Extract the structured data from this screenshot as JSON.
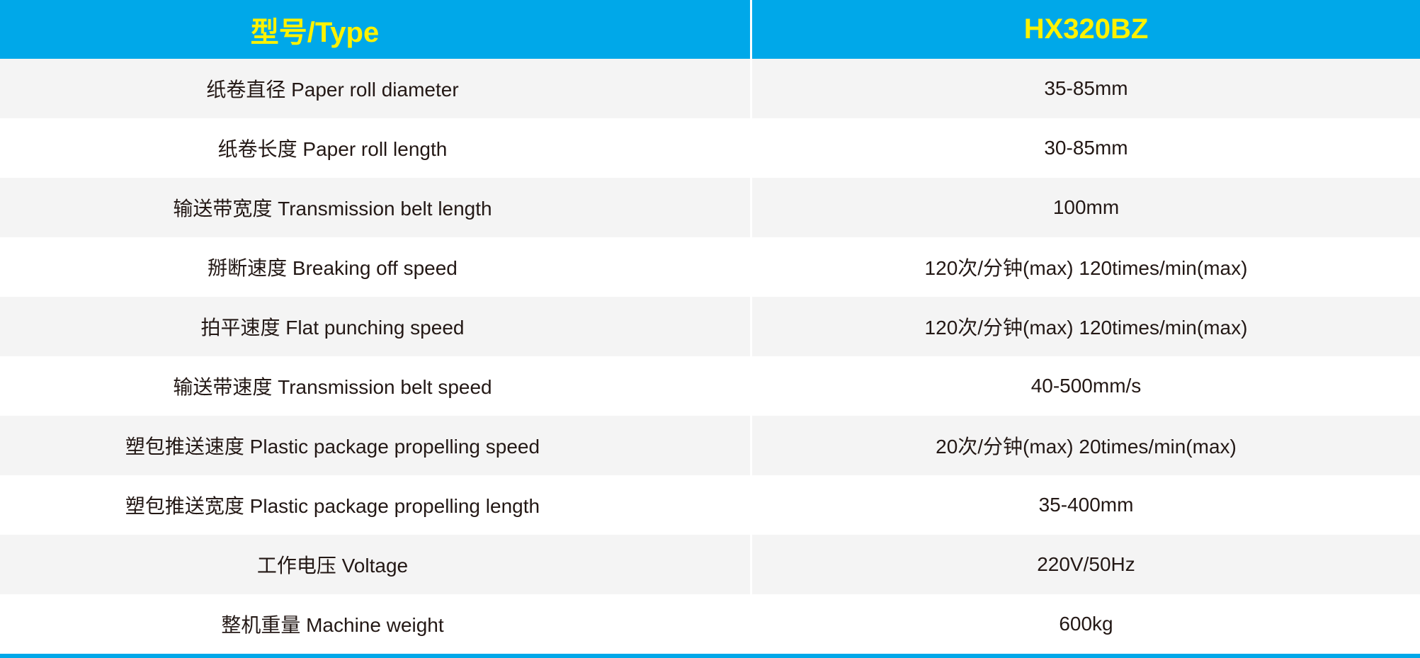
{
  "header": {
    "label": "型号/Type",
    "model": "HX320BZ"
  },
  "rows": [
    {
      "label": "纸卷直径 Paper roll diameter",
      "value": "35-85mm"
    },
    {
      "label": "纸卷长度 Paper roll length",
      "value": "30-85mm"
    },
    {
      "label": "输送带宽度 Transmission belt length",
      "value": "100mm"
    },
    {
      "label": "掰断速度 Breaking off speed",
      "value": "120次/分钟(max) 120times/min(max)"
    },
    {
      "label": "拍平速度 Flat punching speed",
      "value": "120次/分钟(max) 120times/min(max)"
    },
    {
      "label": "输送带速度 Transmission belt speed",
      "value": "40-500mm/s"
    },
    {
      "label": "塑包推送速度 Plastic package propelling speed",
      "value": "20次/分钟(max) 20times/min(max)"
    },
    {
      "label": "塑包推送宽度  Plastic package propelling length",
      "value": "35-400mm"
    },
    {
      "label": "工作电压 Voltage",
      "value": "220V/50Hz"
    },
    {
      "label": "整机重量 Machine weight",
      "value": "600kg"
    }
  ],
  "colors": {
    "header_bg": "#00a8e9",
    "header_text": "#fff200",
    "stripe": "#f4f4f4"
  }
}
